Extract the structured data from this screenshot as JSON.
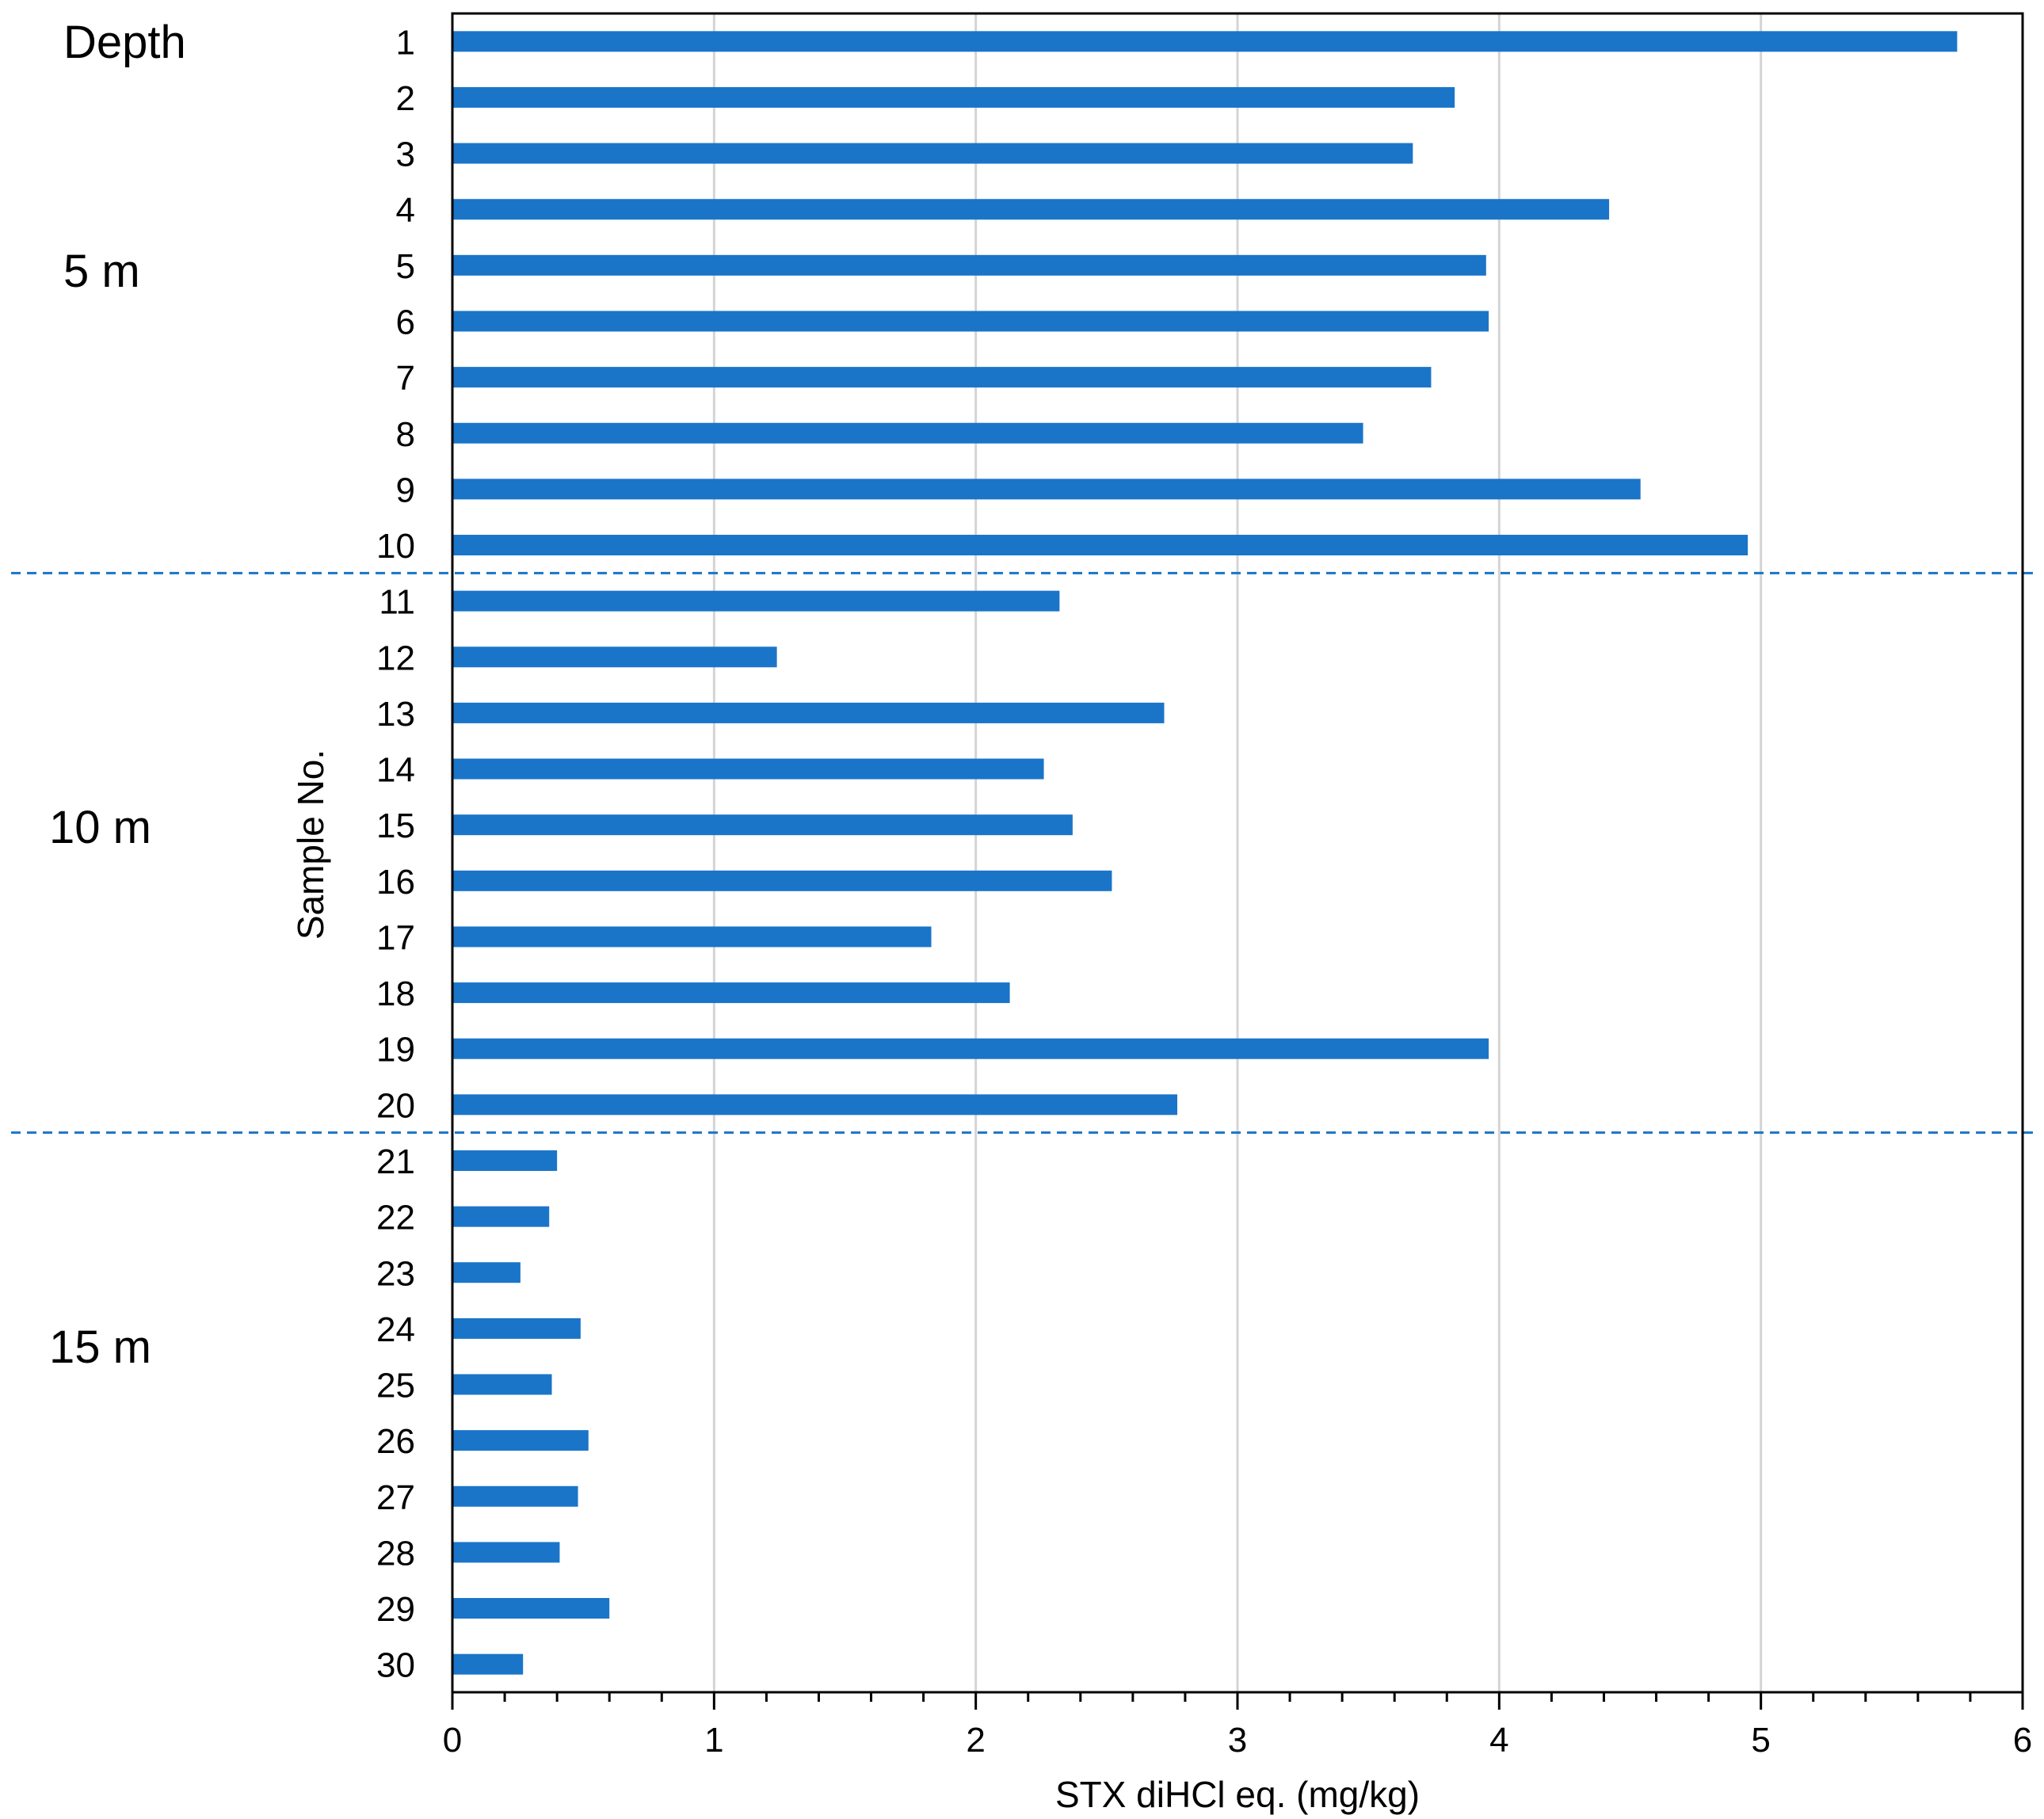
{
  "chart_data": {
    "type": "bar",
    "orientation": "horizontal",
    "title": "",
    "xlabel": "STX diHCl eq. (mg/kg)",
    "ylabel": "Sample No.",
    "xlim": [
      0,
      6
    ],
    "x_ticks": [
      "0",
      "1",
      "2",
      "3",
      "4",
      "5",
      "6"
    ],
    "grid": "vertical major gridlines",
    "categories": [
      "1",
      "2",
      "3",
      "4",
      "5",
      "6",
      "7",
      "8",
      "9",
      "10",
      "11",
      "12",
      "13",
      "14",
      "15",
      "16",
      "17",
      "18",
      "19",
      "20",
      "21",
      "22",
      "23",
      "24",
      "25",
      "26",
      "27",
      "28",
      "29",
      "30"
    ],
    "values": [
      5.75,
      3.83,
      3.67,
      4.42,
      3.95,
      3.96,
      3.74,
      3.48,
      4.54,
      4.95,
      2.32,
      1.24,
      2.72,
      2.26,
      2.37,
      2.52,
      1.83,
      2.13,
      3.96,
      2.77,
      0.4,
      0.37,
      0.26,
      0.49,
      0.38,
      0.52,
      0.48,
      0.41,
      0.6,
      0.27
    ],
    "series_color": "#1a75c9",
    "depth_header": "Depth",
    "depth_groups": [
      {
        "label": "5 m",
        "samples": "1-10"
      },
      {
        "label": "10 m",
        "samples": "11-20"
      },
      {
        "label": "15 m",
        "samples": "21-30"
      }
    ]
  }
}
